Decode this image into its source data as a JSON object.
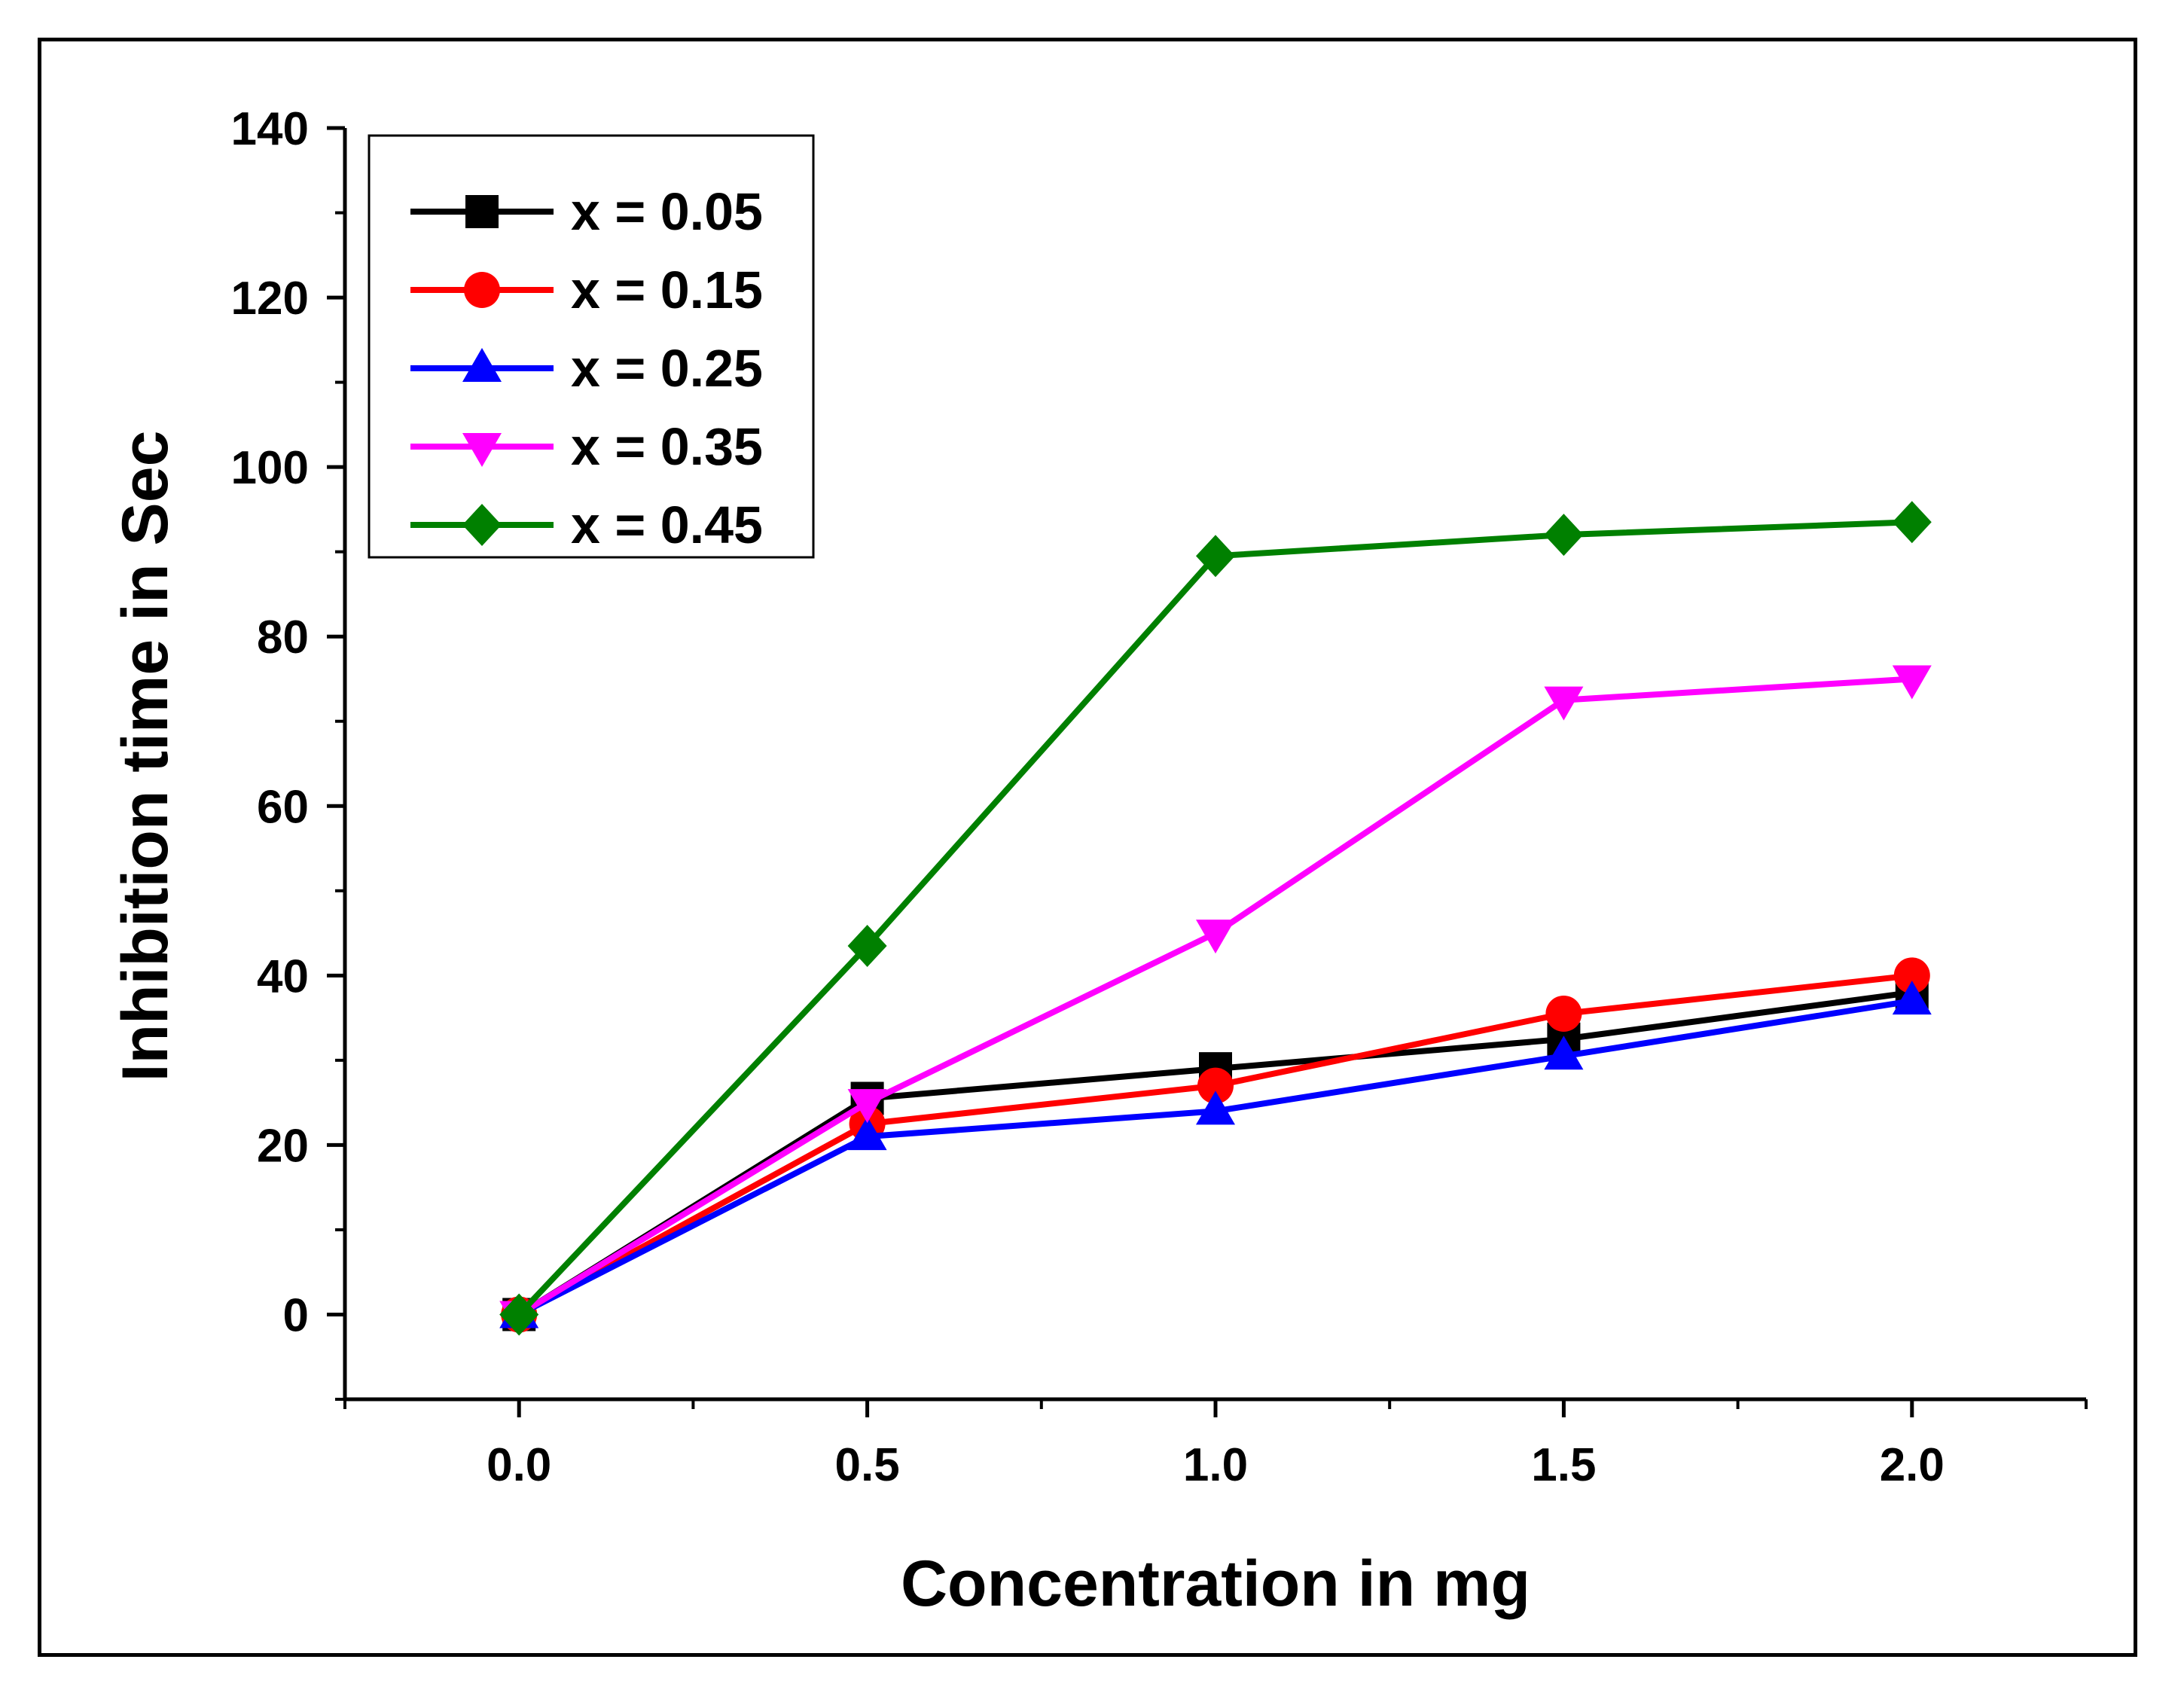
{
  "chart_data": {
    "type": "line",
    "title": "",
    "xlabel": "Concentration in mg",
    "ylabel": "Inhibition time in Sec",
    "xlim": [
      -0.25,
      2.25
    ],
    "ylim": [
      -10,
      140
    ],
    "xticks": [
      0.0,
      0.5,
      1.0,
      1.5,
      2.0
    ],
    "xtick_labels": [
      "0.0",
      "0.5",
      "1.0",
      "1.5",
      "2.0"
    ],
    "yticks": [
      0,
      20,
      40,
      60,
      80,
      100,
      120,
      140
    ],
    "ytick_labels": [
      "0",
      "20",
      "40",
      "60",
      "80",
      "100",
      "120",
      "140"
    ],
    "grid": false,
    "legend_position": "top-left",
    "x": [
      0.0,
      0.5,
      1.0,
      1.5,
      2.0
    ],
    "series": [
      {
        "name": "x = 0.05",
        "color": "#000000",
        "marker": "square",
        "values": [
          0,
          25.5,
          29,
          32.5,
          38
        ]
      },
      {
        "name": "x = 0.15",
        "color": "#ff0000",
        "marker": "circle",
        "values": [
          0,
          22.5,
          27,
          35.5,
          40
        ]
      },
      {
        "name": "x = 0.25",
        "color": "#0000ff",
        "marker": "triangle-up",
        "values": [
          0,
          21,
          24,
          30.5,
          37
        ]
      },
      {
        "name": "x = 0.35",
        "color": "#ff00ff",
        "marker": "triangle-down",
        "values": [
          0,
          25,
          45,
          72.5,
          75
        ]
      },
      {
        "name": "x = 0.45",
        "color": "#008000",
        "marker": "diamond",
        "values": [
          0,
          43.5,
          89.5,
          92,
          93.5
        ]
      }
    ]
  }
}
